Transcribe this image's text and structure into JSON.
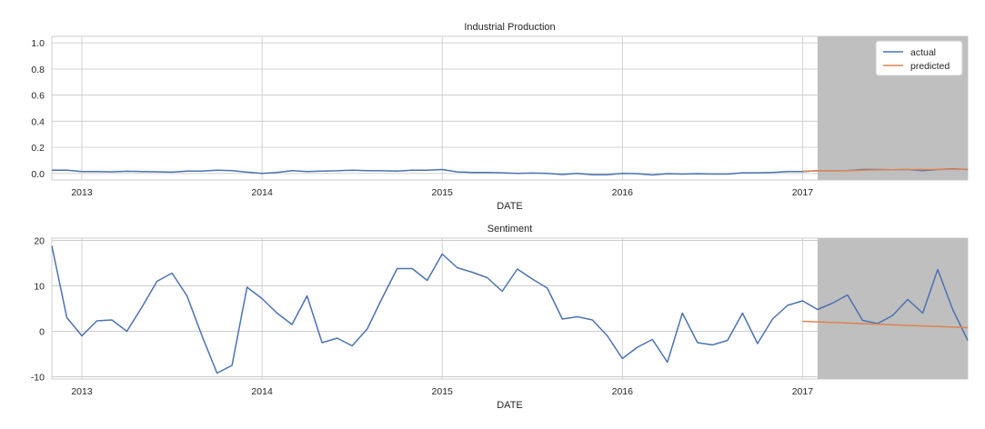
{
  "chart_data": [
    {
      "type": "line",
      "title": "Industrial Production",
      "xlabel": "DATE",
      "ylabel": "",
      "x_ticks": [
        "2013",
        "2014",
        "2015",
        "2016",
        "2017"
      ],
      "xlim": [
        "2012-11",
        "2017-12"
      ],
      "ylim": [
        -0.05,
        1.05
      ],
      "y_ticks": [
        0.0,
        0.2,
        0.4,
        0.6,
        0.8,
        1.0
      ],
      "y_tick_labels": [
        "0.0",
        "0.2",
        "0.4",
        "0.6",
        "0.8",
        "1.0"
      ],
      "grid": true,
      "legend_position": "top-right",
      "shaded_region": {
        "from": "2017-02",
        "to": "2017-12",
        "color": "#bfbfbf"
      },
      "series": [
        {
          "name": "actual",
          "color": "#4c72b0",
          "x": [
            "2012-11",
            "2012-12",
            "2013-01",
            "2013-02",
            "2013-03",
            "2013-04",
            "2013-05",
            "2013-06",
            "2013-07",
            "2013-08",
            "2013-09",
            "2013-10",
            "2013-11",
            "2013-12",
            "2014-01",
            "2014-02",
            "2014-03",
            "2014-04",
            "2014-05",
            "2014-06",
            "2014-07",
            "2014-08",
            "2014-09",
            "2014-10",
            "2014-11",
            "2014-12",
            "2015-01",
            "2015-02",
            "2015-03",
            "2015-04",
            "2015-05",
            "2015-06",
            "2015-07",
            "2015-08",
            "2015-09",
            "2015-10",
            "2015-11",
            "2015-12",
            "2016-01",
            "2016-02",
            "2016-03",
            "2016-04",
            "2016-05",
            "2016-06",
            "2016-07",
            "2016-08",
            "2016-09",
            "2016-10",
            "2016-11",
            "2016-12",
            "2017-01",
            "2017-02",
            "2017-03",
            "2017-04",
            "2017-05",
            "2017-06",
            "2017-07",
            "2017-08",
            "2017-09",
            "2017-10",
            "2017-11",
            "2017-12"
          ],
          "y": [
            0.025,
            0.025,
            0.015,
            0.015,
            0.013,
            0.017,
            0.015,
            0.013,
            0.01,
            0.018,
            0.018,
            0.025,
            0.022,
            0.01,
            0.0,
            0.008,
            0.022,
            0.015,
            0.018,
            0.02,
            0.025,
            0.022,
            0.02,
            0.018,
            0.025,
            0.025,
            0.03,
            0.012,
            0.008,
            0.008,
            0.005,
            0.0,
            0.003,
            0.0,
            -0.008,
            0.0,
            -0.01,
            -0.01,
            0.0,
            -0.002,
            -0.012,
            -0.002,
            -0.005,
            -0.002,
            -0.005,
            -0.005,
            0.005,
            0.005,
            0.008,
            0.015,
            0.015,
            0.02,
            0.02,
            0.022,
            0.03,
            0.03,
            0.028,
            0.03,
            0.022,
            0.03,
            0.035,
            0.03
          ]
        },
        {
          "name": "predicted",
          "color": "#dd8452",
          "x": [
            "2017-01",
            "2017-02",
            "2017-03",
            "2017-04",
            "2017-05",
            "2017-06",
            "2017-07",
            "2017-08",
            "2017-09",
            "2017-10",
            "2017-11",
            "2017-12"
          ],
          "y": [
            0.017,
            0.02,
            0.022,
            0.022,
            0.025,
            0.027,
            0.028,
            0.03,
            0.03,
            0.03,
            0.032,
            0.033
          ]
        }
      ]
    },
    {
      "type": "line",
      "title": "Sentiment",
      "xlabel": "DATE",
      "ylabel": "",
      "x_ticks": [
        "2013",
        "2014",
        "2015",
        "2016",
        "2017"
      ],
      "xlim": [
        "2012-11",
        "2017-12"
      ],
      "ylim": [
        -10.5,
        20.5
      ],
      "y_ticks": [
        -10,
        0,
        10,
        20
      ],
      "y_tick_labels": [
        "-10",
        "0",
        "10",
        "20"
      ],
      "grid": true,
      "shaded_region": {
        "from": "2017-02",
        "to": "2017-12",
        "color": "#bfbfbf"
      },
      "series": [
        {
          "name": "actual",
          "color": "#4c72b0",
          "x": [
            "2012-11",
            "2012-12",
            "2013-01",
            "2013-02",
            "2013-03",
            "2013-04",
            "2013-05",
            "2013-06",
            "2013-07",
            "2013-08",
            "2013-09",
            "2013-10",
            "2013-11",
            "2013-12",
            "2014-01",
            "2014-02",
            "2014-03",
            "2014-04",
            "2014-05",
            "2014-06",
            "2014-07",
            "2014-08",
            "2014-09",
            "2014-10",
            "2014-11",
            "2014-12",
            "2015-01",
            "2015-02",
            "2015-03",
            "2015-04",
            "2015-05",
            "2015-06",
            "2015-07",
            "2015-08",
            "2015-09",
            "2015-10",
            "2015-11",
            "2015-12",
            "2016-01",
            "2016-02",
            "2016-03",
            "2016-04",
            "2016-05",
            "2016-06",
            "2016-07",
            "2016-08",
            "2016-09",
            "2016-10",
            "2016-11",
            "2016-12",
            "2017-01",
            "2017-02",
            "2017-03",
            "2017-04",
            "2017-05",
            "2017-06",
            "2017-07",
            "2017-08",
            "2017-09",
            "2017-10",
            "2017-11",
            "2017-12"
          ],
          "y": [
            18.8,
            3.0,
            -1.0,
            2.3,
            2.5,
            0.0,
            5.3,
            11.0,
            12.8,
            7.8,
            -1.0,
            -9.2,
            -7.5,
            9.7,
            7.2,
            4.0,
            1.5,
            7.8,
            -2.5,
            -1.5,
            -3.2,
            0.5,
            7.3,
            13.8,
            13.8,
            11.2,
            17.0,
            14.0,
            13.0,
            11.8,
            8.8,
            13.7,
            11.5,
            9.5,
            2.7,
            3.2,
            2.5,
            -1.0,
            -6.0,
            -3.5,
            -1.8,
            -6.8,
            4.0,
            -2.5,
            -3.0,
            -2.0,
            4.0,
            -2.7,
            2.7,
            5.7,
            6.7,
            4.8,
            6.2,
            8.0,
            2.4,
            1.7,
            3.5,
            7.0,
            4.0,
            13.6,
            4.8,
            -2.0
          ]
        },
        {
          "name": "predicted",
          "color": "#dd8452",
          "x": [
            "2017-01",
            "2017-12"
          ],
          "y": [
            2.2,
            0.8
          ]
        }
      ]
    }
  ]
}
